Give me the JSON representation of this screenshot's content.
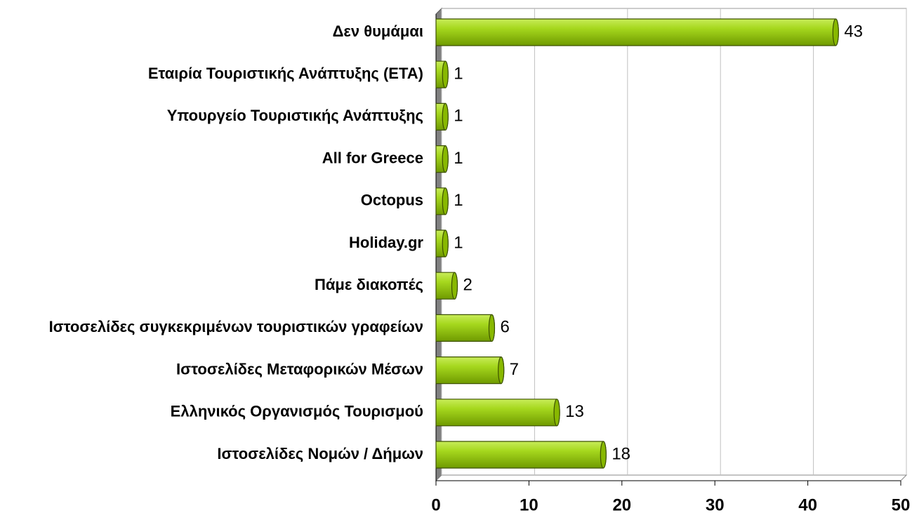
{
  "chart_data": {
    "type": "bar",
    "orientation": "horizontal",
    "categories": [
      "Δεν θυμάμαι",
      "Εταιρία Τουριστικής Ανάπτυξης (ΕΤΑ)",
      "Υπουργείο Τουριστικής Ανάπτυξης",
      "All for Greece",
      "Octopus",
      "Holiday.gr",
      "Πάμε διακοπές",
      "Ιστοσελίδες συγκεκριμένων τουριστικών γραφείων",
      "Ιστοσελίδες Μεταφορικών Μέσων",
      "Ελληνικός Οργανισμός Τουρισμού",
      "Ιστοσελίδες Νομών / Δήμων"
    ],
    "values": [
      43,
      1,
      1,
      1,
      1,
      1,
      2,
      6,
      7,
      13,
      18
    ],
    "color": "#99cc00",
    "xlim": [
      0,
      50
    ],
    "xticks": [
      0,
      10,
      20,
      30,
      40,
      50
    ],
    "grid": true
  }
}
